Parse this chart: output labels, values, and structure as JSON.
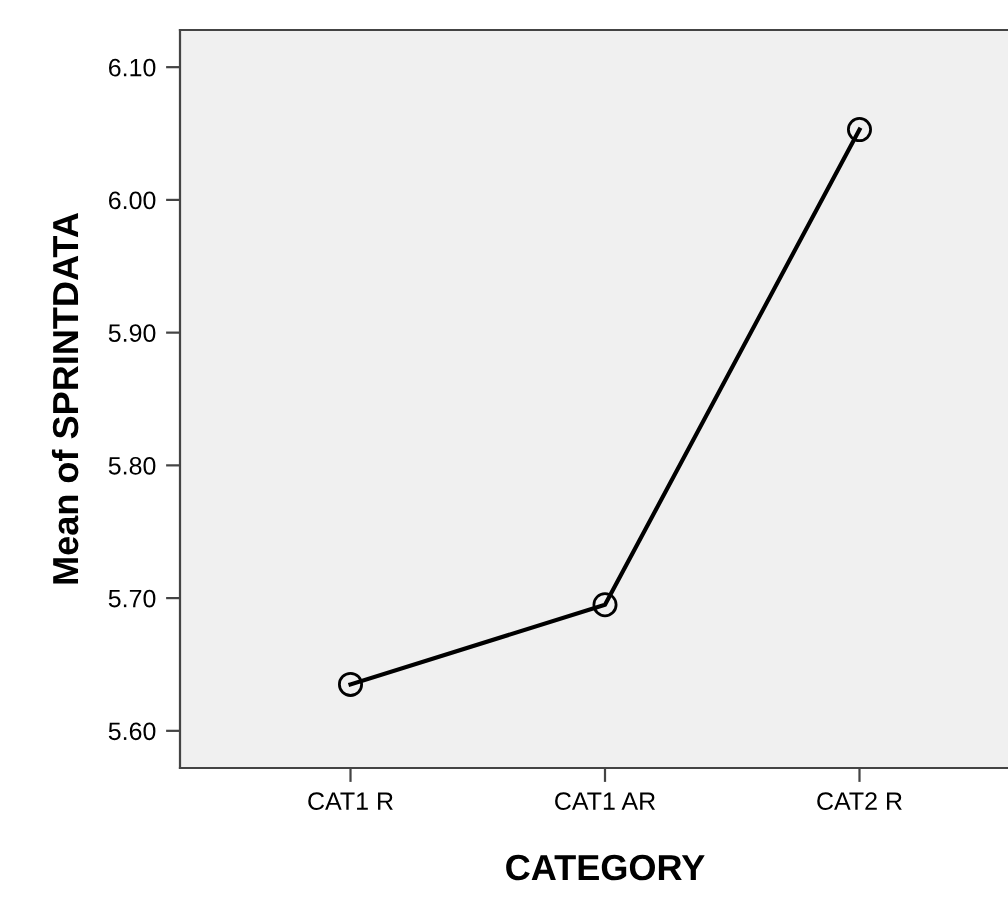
{
  "chart_data": {
    "type": "line",
    "xlabel": "CATEGORY",
    "ylabel": "Mean of SPRINTDATA",
    "categories": [
      "CAT1 R",
      "CAT1 AR",
      "CAT2 R"
    ],
    "series": [
      {
        "color": "#000000",
        "values": [
          5.635,
          5.695,
          6.053
        ]
      }
    ],
    "ylim": [
      5.572,
      6.128
    ],
    "yticks": [
      {
        "value": 5.6,
        "label": "5.60"
      },
      {
        "value": 5.7,
        "label": "5.70"
      },
      {
        "value": 5.8,
        "label": "5.80"
      },
      {
        "value": 5.9,
        "label": "5.90"
      },
      {
        "value": 6.0,
        "label": "6.00"
      },
      {
        "value": 6.1,
        "label": "6.10"
      }
    ],
    "marker": "circle",
    "line_style": "solid",
    "grid": false
  }
}
